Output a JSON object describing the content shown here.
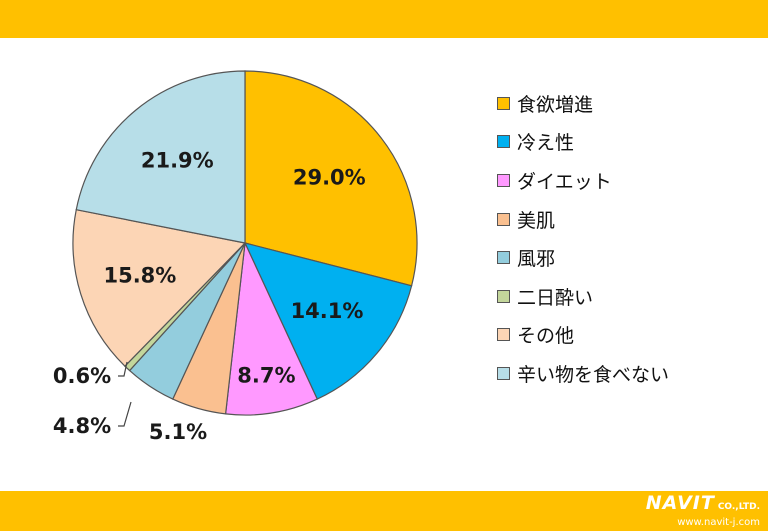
{
  "colors": {
    "band": "#FFC000"
  },
  "chart_data": {
    "type": "pie",
    "start": "top, clockwise",
    "slices": [
      {
        "label": "食欲増進",
        "value": 29.0,
        "display": "29.0%",
        "color": "#FFC000"
      },
      {
        "label": "冷え性",
        "value": 14.1,
        "display": "14.1%",
        "color": "#00B0F0"
      },
      {
        "label": "ダイエット",
        "value": 8.7,
        "display": "8.7%",
        "color": "#FF99FF"
      },
      {
        "label": "美肌",
        "value": 5.1,
        "display": "5.1%",
        "color": "#FAC090"
      },
      {
        "label": "風邪",
        "value": 4.8,
        "display": "4.8%",
        "color": "#93CDDD"
      },
      {
        "label": "二日酔い",
        "value": 0.6,
        "display": "0.6%",
        "color": "#C3D69B"
      },
      {
        "label": "その他",
        "value": 15.8,
        "display": "15.8%",
        "color": "#FCD5B5"
      },
      {
        "label": "辛い物を食べない",
        "value": 21.9,
        "display": "21.9%",
        "color": "#B7DEE8"
      }
    ],
    "legend_position": "right"
  },
  "legend": {
    "items": [
      {
        "label": "食欲増進",
        "color": "#FFC000"
      },
      {
        "label": "冷え性",
        "color": "#00B0F0"
      },
      {
        "label": "ダイエット",
        "color": "#FF99FF"
      },
      {
        "label": "美肌",
        "color": "#FAC090"
      },
      {
        "label": "風邪",
        "color": "#93CDDD"
      },
      {
        "label": "二日酔い",
        "color": "#C3D69B"
      },
      {
        "label": "その他",
        "color": "#FCD5B5"
      },
      {
        "label": "辛い物を食べない",
        "color": "#B7DEE8"
      }
    ]
  },
  "logo": {
    "name": "NAVIT",
    "suffix": "CO.,LTD.",
    "url": "www.navit-j.com"
  }
}
